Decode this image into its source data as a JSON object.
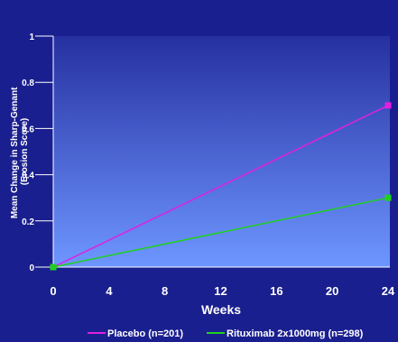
{
  "chart_data": {
    "type": "line",
    "xlabel": "Weeks",
    "ylabel_lines": [
      "Mean Change in Sharp-Genant",
      "(Erosion Score)"
    ],
    "x_ticks": [
      "0",
      "4",
      "8",
      "12",
      "16",
      "20",
      "24"
    ],
    "y_ticks": [
      "0",
      "0.2",
      "0.4",
      "0.6",
      "0.8",
      "1"
    ],
    "xlim": [
      0,
      24
    ],
    "ylim": [
      0,
      1
    ],
    "grid": false,
    "legend_position": "bottom",
    "series": [
      {
        "name": "Placebo (n=201)",
        "color": "#e020e0",
        "x": [
          0,
          24
        ],
        "y": [
          0,
          0.7
        ]
      },
      {
        "name": "Rituximab 2x1000mg (n=298)",
        "color": "#20d020",
        "x": [
          0,
          24
        ],
        "y": [
          0,
          0.3
        ]
      }
    ]
  }
}
